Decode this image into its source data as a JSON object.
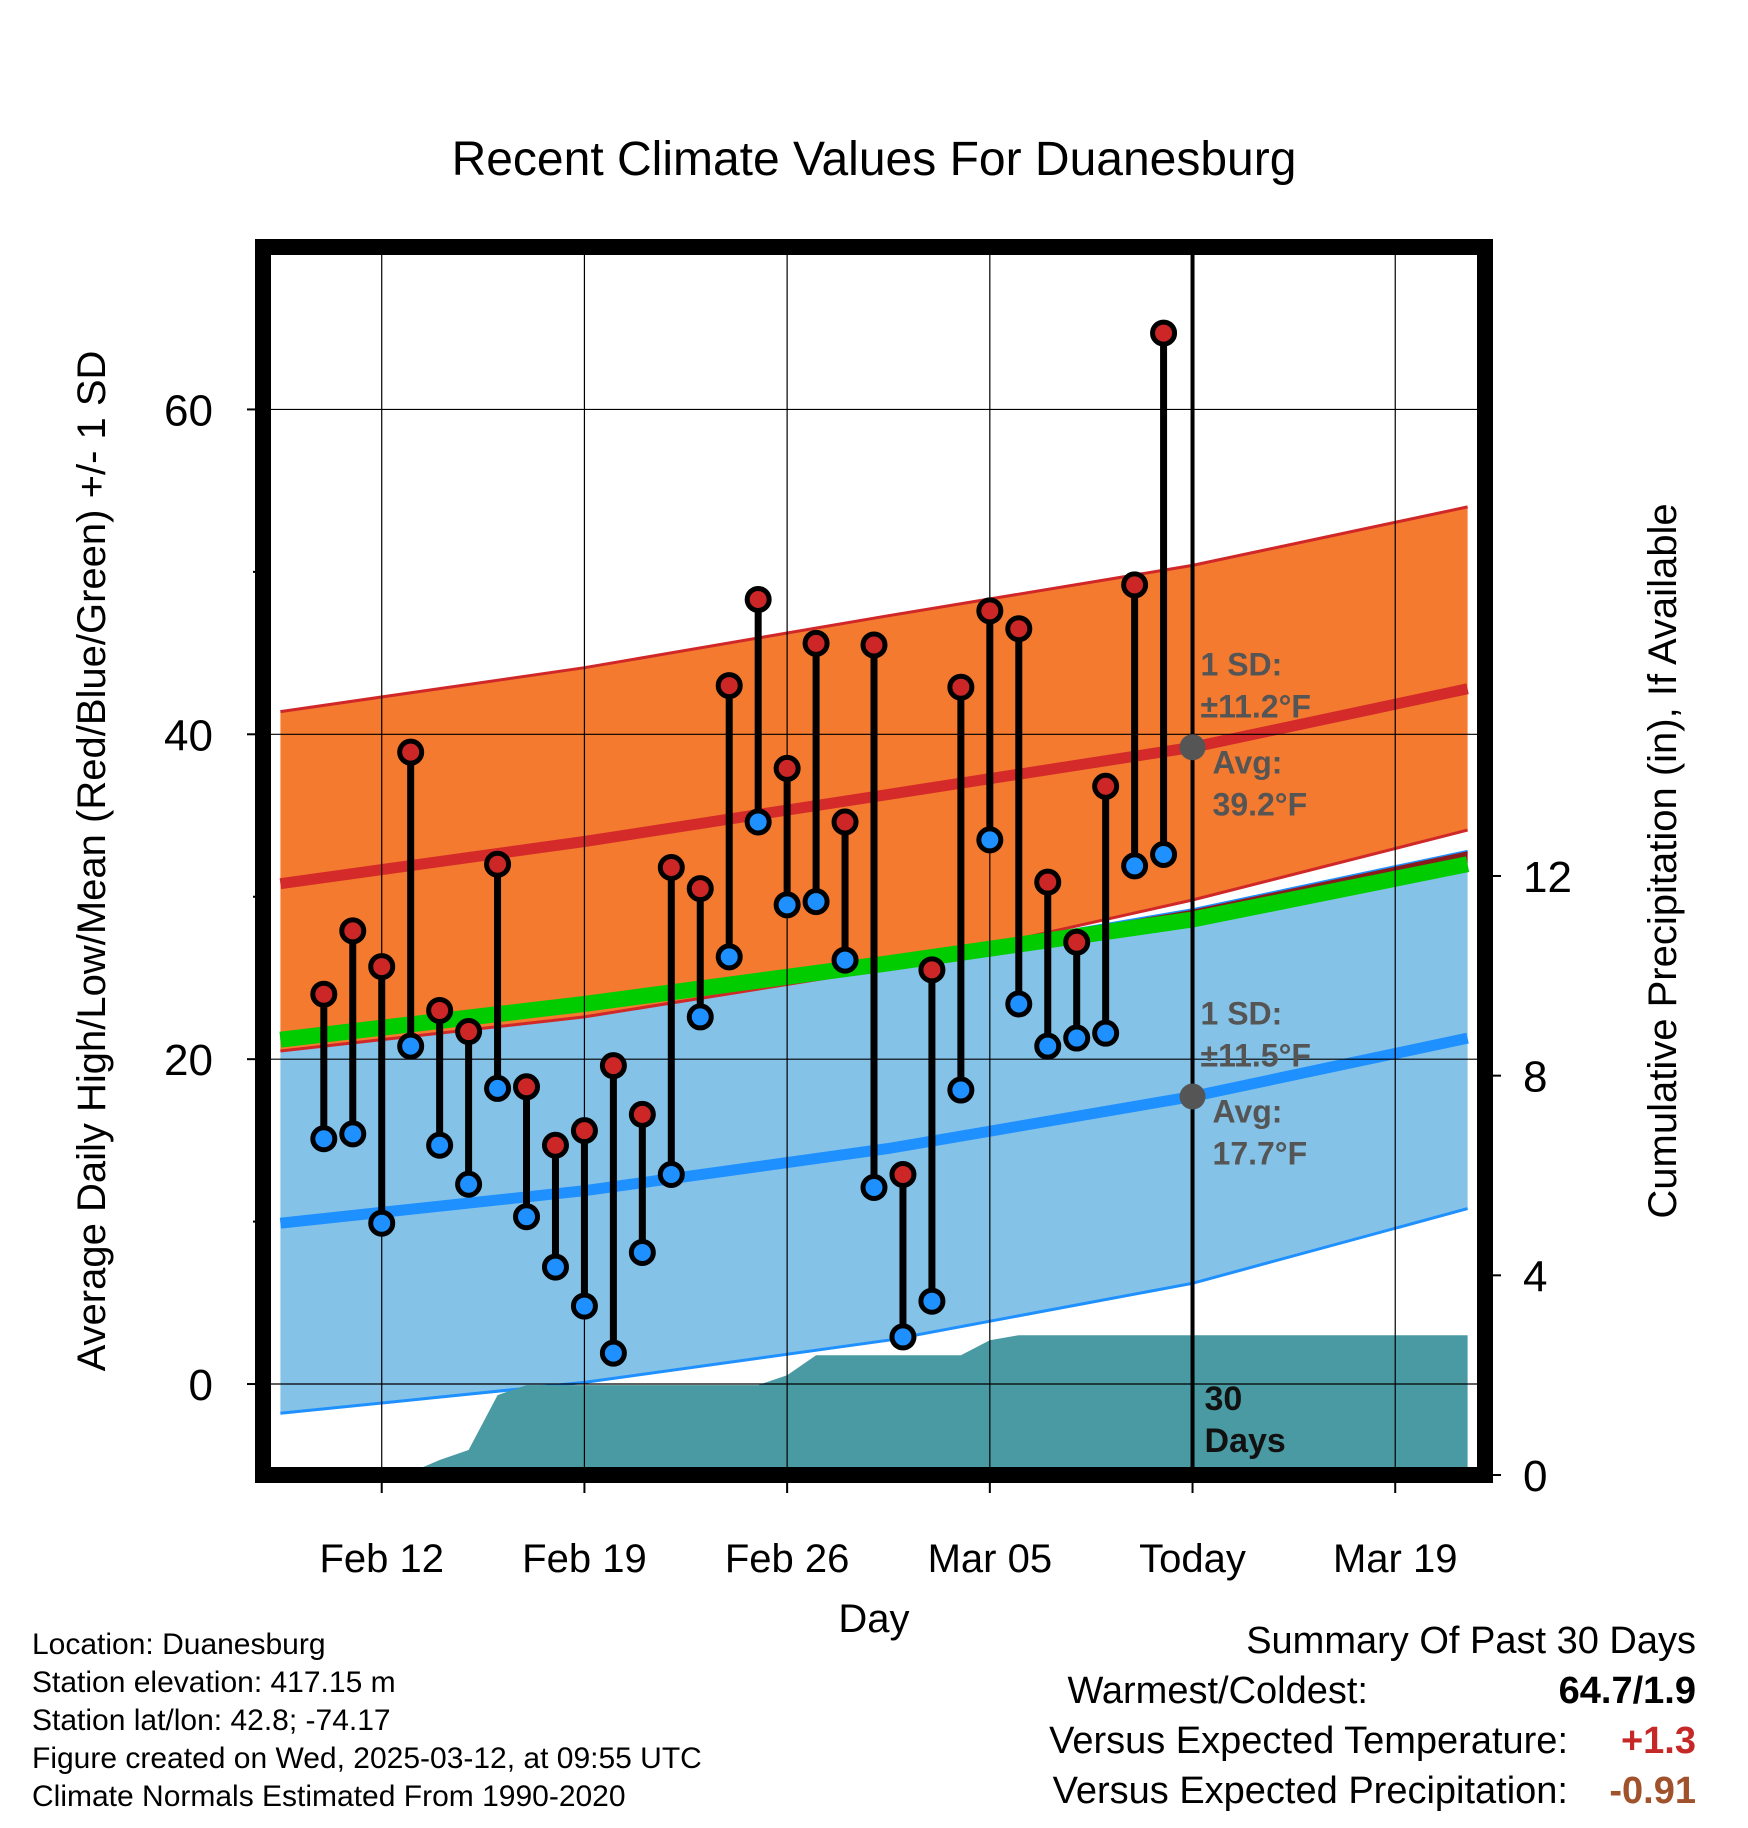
{
  "chart_data": {
    "type": "line",
    "title": "Recent Climate Values For Duanesburg",
    "xlabel": "Day",
    "ylabel": "Average Daily High/Low/Mean (Red/Blue/Green) +/- 1 SD",
    "y2label": "Cumulative Precipitation (in), If Available",
    "ylim": [
      -5.6,
      70
    ],
    "y2lim": [
      0,
      24.6
    ],
    "x_range_days": [
      -32.1,
      10.1
    ],
    "x_ticks": [
      {
        "day": -28,
        "label": "Feb 12"
      },
      {
        "day": -21,
        "label": "Feb 19"
      },
      {
        "day": -14,
        "label": "Feb 26"
      },
      {
        "day": -7,
        "label": "Mar 05"
      },
      {
        "day": 0,
        "label": "Today"
      },
      {
        "day": 7,
        "label": "Mar 19"
      }
    ],
    "y_ticks": [
      0,
      20,
      40,
      60
    ],
    "y2_ticks": [
      0,
      4,
      8,
      12
    ],
    "grid": true,
    "today_label": "Today",
    "period_label": "30 Days",
    "normal_high": {
      "mean": [
        [
          -31.5,
          30.8
        ],
        [
          -21,
          33.4
        ],
        [
          -10.5,
          36.3
        ],
        [
          0,
          39.2
        ],
        [
          9.5,
          42.8
        ]
      ],
      "upper": [
        [
          -31.5,
          41.4
        ],
        [
          -21,
          44.1
        ],
        [
          -10.5,
          47.3
        ],
        [
          0,
          50.4
        ],
        [
          9.5,
          54.0
        ]
      ],
      "lower": [
        [
          -31.5,
          20.5
        ],
        [
          -21,
          22.6
        ],
        [
          -10.5,
          25.6
        ],
        [
          0,
          29.8
        ],
        [
          9.5,
          34.1
        ]
      ]
    },
    "normal_low": {
      "mean": [
        [
          -31.5,
          9.9
        ],
        [
          -21,
          11.9
        ],
        [
          -10.5,
          14.5
        ],
        [
          0,
          17.7
        ],
        [
          9.5,
          21.3
        ]
      ],
      "upper": [
        [
          -31.5,
          21.3
        ],
        [
          -21,
          23.4
        ],
        [
          -10.5,
          26.0
        ],
        [
          0,
          29.2
        ],
        [
          9.5,
          32.8
        ]
      ],
      "lower": [
        [
          -31.5,
          -1.8
        ],
        [
          -21,
          0.1
        ],
        [
          -10.5,
          2.7
        ],
        [
          0,
          6.2
        ],
        [
          9.5,
          10.8
        ]
      ]
    },
    "normal_mean": [
      [
        -31.5,
        21.2
      ],
      [
        -21,
        23.4
      ],
      [
        -10.5,
        25.9
      ],
      [
        0,
        28.6
      ],
      [
        9.5,
        32.0
      ]
    ],
    "annotations": {
      "high": {
        "sd_line1": "1 SD:",
        "sd_line2": "±11.2°F",
        "avg_line1": "Avg:",
        "avg_line2": "39.2°F",
        "avg": 39.2
      },
      "low": {
        "sd_line1": "1 SD:",
        "sd_line2": "±11.5°F",
        "avg_line1": "Avg:",
        "avg_line2": "17.7°F",
        "avg": 17.7
      }
    },
    "observations": [
      {
        "day": -30,
        "high": 24.0,
        "low": 15.1
      },
      {
        "day": -29,
        "high": 27.9,
        "low": 15.4
      },
      {
        "day": -28,
        "high": 25.7,
        "low": 9.9
      },
      {
        "day": -27,
        "high": 38.9,
        "low": 20.8
      },
      {
        "day": -26,
        "high": 23.0,
        "low": 14.7
      },
      {
        "day": -25,
        "high": 21.7,
        "low": 12.3
      },
      {
        "day": -24,
        "high": 32.0,
        "low": 18.2
      },
      {
        "day": -23,
        "high": 18.3,
        "low": 10.3
      },
      {
        "day": -22,
        "high": 14.7,
        "low": 7.2
      },
      {
        "day": -21,
        "high": 15.6,
        "low": 4.8
      },
      {
        "day": -20,
        "high": 19.6,
        "low": 1.9
      },
      {
        "day": -19,
        "high": 16.6,
        "low": 8.1
      },
      {
        "day": -18,
        "high": 31.8,
        "low": 12.9
      },
      {
        "day": -17,
        "high": 30.5,
        "low": 22.6
      },
      {
        "day": -16,
        "high": 43.0,
        "low": 26.3
      },
      {
        "day": -15,
        "high": 48.3,
        "low": 34.6
      },
      {
        "day": -14,
        "high": 37.9,
        "low": 29.5
      },
      {
        "day": -13,
        "high": 45.6,
        "low": 29.7
      },
      {
        "day": -12,
        "high": 34.6,
        "low": 26.1
      },
      {
        "day": -11,
        "high": 45.5,
        "low": 12.1
      },
      {
        "day": -10,
        "high": 12.9,
        "low": 2.9
      },
      {
        "day": -9,
        "high": 25.5,
        "low": 5.1
      },
      {
        "day": -8,
        "high": 42.9,
        "low": 18.1
      },
      {
        "day": -7,
        "high": 47.6,
        "low": 33.5
      },
      {
        "day": -6,
        "high": 46.5,
        "low": 23.4
      },
      {
        "day": -5,
        "high": 30.9,
        "low": 20.8
      },
      {
        "day": -4,
        "high": 27.2,
        "low": 21.3
      },
      {
        "day": -3,
        "high": 36.8,
        "low": 21.6
      },
      {
        "day": -2,
        "high": 49.2,
        "low": 31.9
      },
      {
        "day": -1,
        "high": 64.7,
        "low": 32.6
      }
    ],
    "cumulative_precipitation": [
      [
        -31.5,
        0.0
      ],
      [
        -27.2,
        0.0
      ],
      [
        -26.0,
        0.3
      ],
      [
        -25.0,
        0.5
      ],
      [
        -24.0,
        1.6
      ],
      [
        -23.0,
        1.8
      ],
      [
        -18.0,
        1.8
      ],
      [
        -15.0,
        1.8
      ],
      [
        -14.0,
        2.0
      ],
      [
        -13.0,
        2.4
      ],
      [
        -12.0,
        2.4
      ],
      [
        -8.0,
        2.4
      ],
      [
        -7.0,
        2.7
      ],
      [
        -6.0,
        2.8
      ],
      [
        -3.0,
        2.8
      ],
      [
        0.0,
        2.8
      ],
      [
        9.5,
        2.8
      ]
    ]
  },
  "footer": {
    "location": "Location: Duanesburg",
    "elevation": "Station elevation: 417.15 m",
    "latlon": "Station lat/lon: 42.8; -74.17",
    "created": "Figure created on Wed, 2025-03-12, at 09:55 UTC",
    "normals": "Climate Normals Estimated From 1990-2020"
  },
  "summary": {
    "title": "Summary Of Past 30 Days",
    "warmest_label": "Warmest/Coldest:",
    "warmest_value": "64.7/1.9",
    "temp_label": "Versus Expected Temperature:",
    "temp_value": "+1.3",
    "precip_label": "Versus Expected Precipitation:",
    "precip_value": "-0.91",
    "colors": {
      "temp": "#c62828",
      "precip": "#a0522d"
    }
  }
}
